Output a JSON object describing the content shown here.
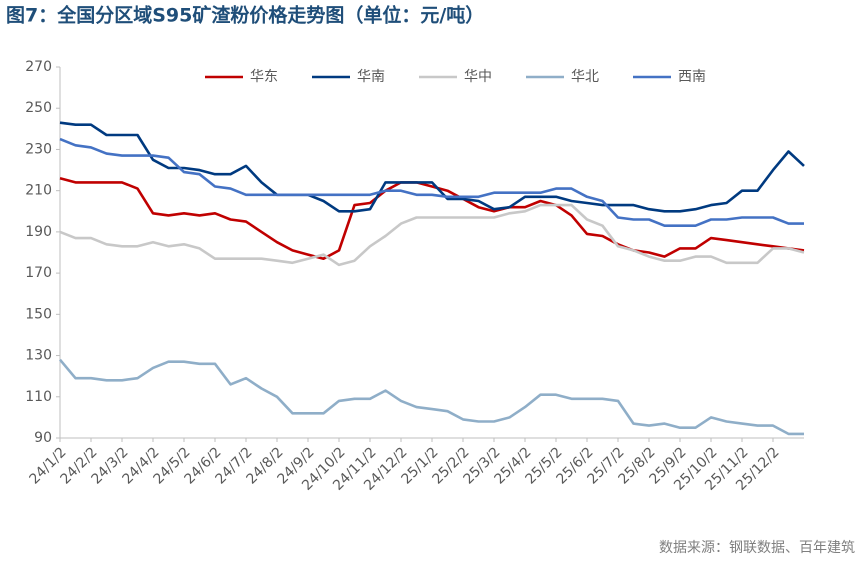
{
  "chart_data": {
    "type": "line",
    "title": "图7：全国分区域S95矿渣粉价格走势图（单位：元/吨）",
    "source": "数据来源：钢联数据、百年建筑",
    "categories": [
      "24/1/2",
      null,
      "24/2/2",
      null,
      "24/3/2",
      null,
      "24/4/2",
      null,
      "24/5/2",
      null,
      "24/6/2",
      null,
      "24/7/2",
      null,
      "24/8/2",
      null,
      "24/9/2",
      null,
      "24/10/2",
      null,
      "24/11/2",
      null,
      "24/12/2",
      null,
      "25/1/2",
      null,
      "25/2/2",
      null,
      "25/3/2",
      null,
      "25/4/2",
      null,
      "25/5/2",
      null,
      "25/6/2",
      null,
      "25/7/2",
      null,
      "25/8/2",
      null,
      "25/9/2",
      null,
      "25/10/2",
      null,
      "25/11/2",
      null,
      "25/12/2",
      null,
      null
    ],
    "series": [
      {
        "name": "华东",
        "color": "#c00000",
        "values": [
          216,
          214,
          214,
          214,
          214,
          211,
          199,
          198,
          199,
          198,
          199,
          196,
          195,
          190,
          185,
          181,
          179,
          177,
          181,
          203,
          204,
          210,
          214,
          214,
          212,
          210,
          206,
          202,
          200,
          202,
          202,
          205,
          203,
          198,
          189,
          188,
          184,
          181,
          180,
          178,
          182,
          182,
          187,
          186,
          185,
          184,
          183,
          182,
          181
        ]
      },
      {
        "name": "华南",
        "color": "#003a80",
        "values": [
          243,
          242,
          242,
          237,
          237,
          237,
          225,
          221,
          221,
          220,
          218,
          218,
          222,
          214,
          208,
          208,
          208,
          205,
          200,
          200,
          201,
          214,
          214,
          214,
          214,
          206,
          206,
          205,
          201,
          202,
          207,
          207,
          207,
          205,
          204,
          203,
          203,
          203,
          201,
          200,
          200,
          201,
          203,
          204,
          210,
          210,
          220,
          229,
          222
        ]
      },
      {
        "name": "华中",
        "color": "#c8c8c8",
        "values": [
          190,
          187,
          187,
          184,
          183,
          183,
          185,
          183,
          184,
          182,
          177,
          177,
          177,
          177,
          176,
          175,
          177,
          179,
          174,
          176,
          183,
          188,
          194,
          197,
          197,
          197,
          197,
          197,
          197,
          199,
          200,
          203,
          203,
          203,
          196,
          193,
          183,
          181,
          178,
          176,
          176,
          178,
          178,
          175,
          175,
          175,
          182,
          182,
          180
        ]
      },
      {
        "name": "华北",
        "color": "#8faec8",
        "values": [
          128,
          119,
          119,
          118,
          118,
          119,
          124,
          127,
          127,
          126,
          126,
          116,
          119,
          114,
          110,
          102,
          102,
          102,
          108,
          109,
          109,
          113,
          108,
          105,
          104,
          103,
          99,
          98,
          98,
          100,
          105,
          111,
          111,
          109,
          109,
          109,
          108,
          97,
          96,
          97,
          95,
          95,
          100,
          98,
          97,
          96,
          96,
          92,
          92
        ]
      },
      {
        "name": "西南",
        "color": "#4472c4",
        "values": [
          235,
          232,
          231,
          228,
          227,
          227,
          227,
          226,
          219,
          218,
          212,
          211,
          208,
          208,
          208,
          208,
          208,
          208,
          208,
          208,
          208,
          210,
          210,
          208,
          208,
          207,
          207,
          207,
          209,
          209,
          209,
          209,
          211,
          211,
          207,
          205,
          197,
          196,
          196,
          193,
          193,
          193,
          196,
          196,
          197,
          197,
          197,
          194,
          194
        ]
      }
    ],
    "ylim": [
      90,
      270
    ],
    "yticks": [
      90,
      110,
      130,
      150,
      170,
      190,
      210,
      230,
      250,
      270
    ],
    "grid": false
  }
}
